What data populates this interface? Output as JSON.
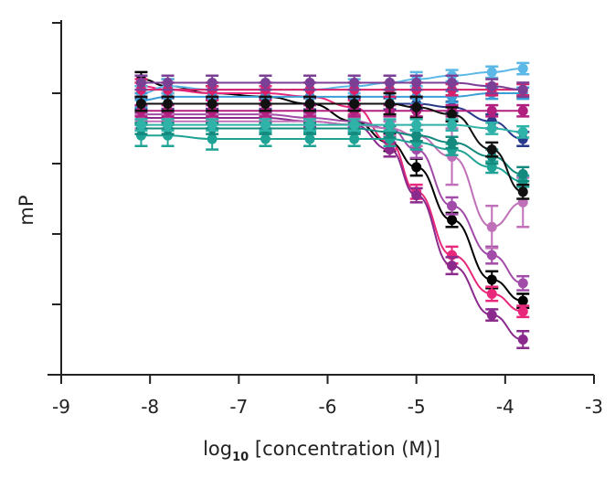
{
  "chart_data": {
    "type": "scatter",
    "title": "",
    "xlabel_prefix": "log",
    "xlabel_subscript": "10",
    "xlabel_suffix": " [concentration (M)]",
    "ylabel": "mP",
    "xlim": [
      -9,
      -3
    ],
    "x_ticks": [
      -9,
      -8,
      -7,
      -6,
      -5,
      -4,
      -3
    ],
    "x_tick_labels": [
      "-9",
      "-8",
      "-7",
      "-6",
      "-5",
      "-4",
      "-3"
    ],
    "ylim": [
      0,
      5
    ],
    "y_ticks": [
      0,
      1,
      2,
      3,
      4,
      5
    ],
    "y_tick_labels_shown": false,
    "grid": false,
    "legend": "none",
    "concentrations": [
      -8.1,
      -7.8,
      -7.3,
      -6.7,
      -6.2,
      -5.7,
      -5.3,
      -5.0,
      -4.6,
      -4.15,
      -3.8
    ],
    "series": [
      {
        "color": "#000000",
        "values": [
          4.2,
          4.1,
          4.0,
          3.95,
          3.85,
          3.6,
          3.3,
          2.95,
          2.2,
          1.35,
          1.05
        ],
        "err": [
          0.1,
          0.1,
          0.1,
          0.1,
          0.1,
          0.15,
          0.12,
          0.12,
          0.1,
          0.12,
          0.1
        ]
      },
      {
        "color": "#e8287a",
        "values": [
          4.1,
          4.05,
          4.0,
          4.0,
          3.95,
          3.8,
          3.3,
          2.6,
          1.7,
          1.15,
          0.9
        ],
        "err": [
          0.1,
          0.1,
          0.1,
          0.1,
          0.1,
          0.1,
          0.1,
          0.1,
          0.12,
          0.1,
          0.08
        ]
      },
      {
        "color": "#8a2a8c",
        "values": [
          3.65,
          3.65,
          3.65,
          3.65,
          3.6,
          3.55,
          3.2,
          2.55,
          1.55,
          0.85,
          0.5
        ],
        "err": [
          0.08,
          0.08,
          0.08,
          0.08,
          0.08,
          0.1,
          0.1,
          0.1,
          0.12,
          0.08,
          0.12
        ]
      },
      {
        "color": "#a14ca8",
        "values": [
          3.7,
          3.7,
          3.7,
          3.7,
          3.65,
          3.6,
          3.5,
          3.2,
          2.4,
          1.7,
          1.3
        ],
        "err": [
          0.08,
          0.08,
          0.08,
          0.08,
          0.08,
          0.08,
          0.1,
          0.12,
          0.12,
          0.12,
          0.1
        ]
      },
      {
        "color": "#c070b8",
        "values": [
          3.6,
          3.6,
          3.6,
          3.6,
          3.6,
          3.55,
          3.5,
          3.4,
          3.1,
          2.1,
          2.45
        ],
        "err": [
          0.1,
          0.1,
          0.1,
          0.1,
          0.1,
          0.1,
          0.1,
          0.15,
          0.4,
          0.3,
          0.35
        ]
      },
      {
        "color": "#1fa395",
        "values": [
          3.4,
          3.4,
          3.35,
          3.35,
          3.35,
          3.35,
          3.35,
          3.3,
          3.2,
          2.95,
          2.75
        ],
        "err": [
          0.15,
          0.15,
          0.15,
          0.1,
          0.1,
          0.1,
          0.1,
          0.1,
          0.08,
          0.08,
          0.08
        ]
      },
      {
        "color": "#14897d",
        "values": [
          3.5,
          3.5,
          3.5,
          3.5,
          3.5,
          3.5,
          3.45,
          3.4,
          3.3,
          3.1,
          2.85
        ],
        "err": [
          0.08,
          0.08,
          0.08,
          0.08,
          0.08,
          0.08,
          0.08,
          0.08,
          0.08,
          0.1,
          0.1
        ]
      },
      {
        "color": "#2a3a8a",
        "values": [
          3.85,
          3.85,
          3.85,
          3.85,
          3.85,
          3.85,
          3.85,
          3.85,
          3.8,
          3.6,
          3.35
        ],
        "err": [
          0.08,
          0.08,
          0.08,
          0.08,
          0.08,
          0.08,
          0.08,
          0.08,
          0.08,
          0.1,
          0.1
        ]
      },
      {
        "color": "#5cb8e6",
        "values": [
          4.0,
          4.1,
          4.05,
          4.05,
          4.05,
          4.1,
          4.15,
          4.2,
          4.25,
          4.3,
          4.35
        ],
        "err": [
          0.1,
          0.1,
          0.1,
          0.1,
          0.1,
          0.1,
          0.1,
          0.1,
          0.08,
          0.08,
          0.08
        ]
      },
      {
        "color": "#3b9fd6",
        "values": [
          3.9,
          3.95,
          3.95,
          3.95,
          3.95,
          3.95,
          3.95,
          3.95,
          3.95,
          4.0,
          4.0
        ],
        "err": [
          0.1,
          0.1,
          0.1,
          0.1,
          0.1,
          0.1,
          0.1,
          0.1,
          0.08,
          0.08,
          0.08
        ]
      },
      {
        "color": "#d91f6a",
        "values": [
          4.05,
          4.05,
          4.05,
          4.05,
          4.05,
          4.05,
          4.05,
          4.05,
          4.05,
          4.05,
          4.05
        ],
        "err": [
          0.1,
          0.1,
          0.1,
          0.1,
          0.1,
          0.1,
          0.1,
          0.1,
          0.08,
          0.08,
          0.08
        ]
      },
      {
        "color": "#b1207f",
        "values": [
          3.75,
          3.75,
          3.75,
          3.75,
          3.75,
          3.75,
          3.75,
          3.75,
          3.75,
          3.75,
          3.75
        ],
        "err": [
          0.08,
          0.08,
          0.08,
          0.08,
          0.08,
          0.08,
          0.08,
          0.08,
          0.08,
          0.08,
          0.08
        ]
      },
      {
        "color": "#7b3f96",
        "values": [
          4.15,
          4.15,
          4.15,
          4.15,
          4.15,
          4.15,
          4.15,
          4.15,
          4.15,
          4.1,
          4.05
        ],
        "err": [
          0.1,
          0.1,
          0.1,
          0.1,
          0.1,
          0.1,
          0.1,
          0.1,
          0.1,
          0.1,
          0.1
        ]
      },
      {
        "color": "#111111",
        "values": [
          3.85,
          3.85,
          3.85,
          3.85,
          3.85,
          3.85,
          3.85,
          3.8,
          3.7,
          3.2,
          2.6
        ],
        "err": [
          0.1,
          0.1,
          0.1,
          0.1,
          0.1,
          0.1,
          0.15,
          0.15,
          0.1,
          0.1,
          0.1
        ]
      },
      {
        "color": "#2fb2a8",
        "values": [
          3.55,
          3.55,
          3.55,
          3.55,
          3.55,
          3.55,
          3.55,
          3.55,
          3.55,
          3.5,
          3.45
        ],
        "err": [
          0.08,
          0.08,
          0.08,
          0.08,
          0.08,
          0.08,
          0.08,
          0.08,
          0.08,
          0.08,
          0.08
        ]
      }
    ]
  }
}
